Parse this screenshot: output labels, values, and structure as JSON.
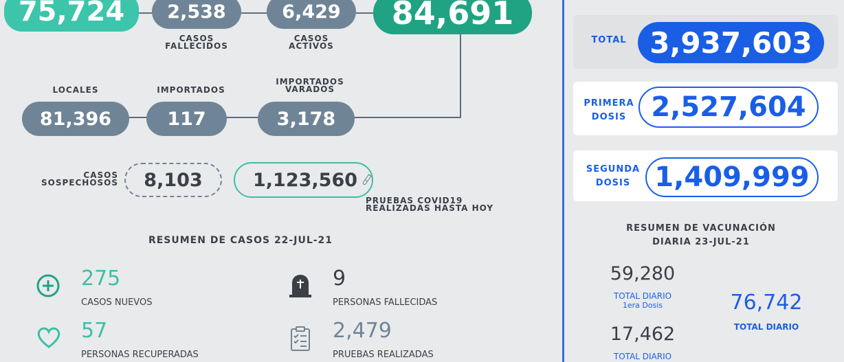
{
  "top": {
    "recovered_total": "75,724",
    "deaths": {
      "value": "2,538",
      "label_line1": "CASOS",
      "label_line2": "FALLECIDOS"
    },
    "active": {
      "value": "6,429",
      "label_line1": "CASOS",
      "label_line2": "ACTIVOS"
    },
    "total_cases": "84,691"
  },
  "origin": {
    "locales": {
      "label": "LOCALES",
      "value": "81,396"
    },
    "importados": {
      "label": "IMPORTADOS",
      "value": "117"
    },
    "varados": {
      "label_line1": "IMPORTADOS",
      "label_line2": "VARADOS",
      "value": "3,178"
    }
  },
  "suspects": {
    "label_line1": "CASOS",
    "label_line2": "SOSPECHOSOS",
    "value": "8,103"
  },
  "tests": {
    "value": "1,123,560",
    "label_line1": "PRUEBAS COVID19",
    "label_line2": "REALIZADAS HASTA HOY"
  },
  "summary": {
    "title": "RESUMEN DE CASOS 22-JUL-21",
    "new_cases": {
      "value": "275",
      "label": "CASOS NUEVOS"
    },
    "deaths": {
      "value": "9",
      "label": "PERSONAS FALLECIDAS"
    },
    "recovered": {
      "value": "57",
      "label": "PERSONAS RECUPERADAS"
    },
    "tests": {
      "value": "2,479",
      "label": "PRUEBAS REALIZADAS"
    }
  },
  "vaccination": {
    "total": {
      "label": "TOTAL",
      "value": "3,937,603"
    },
    "first": {
      "label_line1": "PRIMERA",
      "label_line2": "DOSIS",
      "value": "2,527,604"
    },
    "second": {
      "label_line1": "SEGUNDA",
      "label_line2": "DOSIS",
      "value": "1,409,999"
    },
    "daily_title_line1": "RESUMEN DE VACUNACIÓN",
    "daily_title_line2": "DIARIA 23-JUL-21",
    "first_daily": {
      "value": "59,280",
      "label_line1": "TOTAL DIARIO",
      "label_line2": "1era Dosis"
    },
    "second_daily": {
      "value": "17,462",
      "label_line1": "TOTAL DIARIO"
    },
    "total_daily": {
      "value": "76,742",
      "label": "TOTAL DIARIO"
    }
  },
  "colors": {
    "teal": "#3dbfa6",
    "dark_teal": "#1fa383",
    "slate": "#6f8597",
    "blue": "#1a5ee6",
    "divider": "#2f6fd9"
  },
  "icons": [
    "plus-circle-icon",
    "heart-icon",
    "tombstone-icon",
    "clipboard-checklist-icon",
    "test-tube-icon"
  ]
}
